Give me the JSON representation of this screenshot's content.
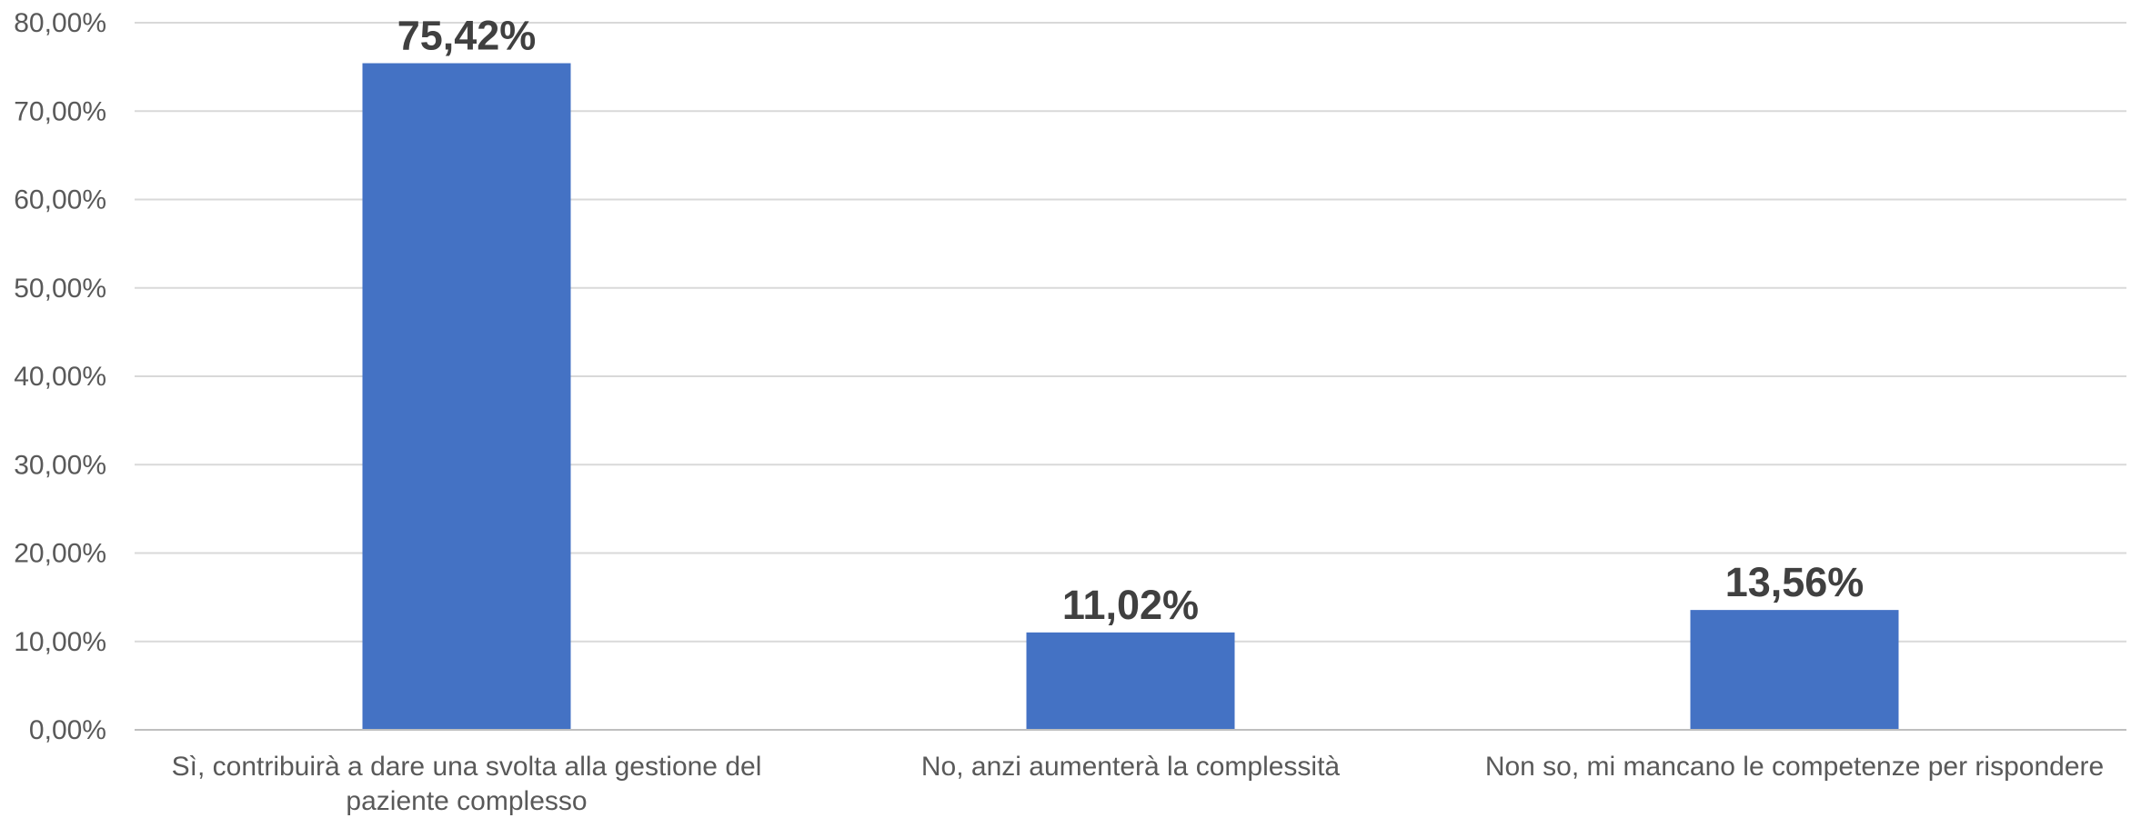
{
  "chart_data": {
    "type": "bar",
    "categories": [
      "Sì, contribuirà a dare una svolta alla gestione del paziente complesso",
      "No, anzi aumenterà la complessità",
      "Non so, mi mancano le competenze per rispondere"
    ],
    "category_lines": [
      [
        "Sì, contribuirà a dare una svolta alla gestione del",
        "paziente complesso"
      ],
      [
        "No, anzi aumenterà la complessità"
      ],
      [
        "Non so, mi mancano le competenze per rispondere"
      ]
    ],
    "values": [
      75.42,
      11.02,
      13.56
    ],
    "data_labels": [
      "75,42%",
      "11,02%",
      "13,56%"
    ],
    "title": "",
    "xlabel": "",
    "ylabel": "",
    "ylim": [
      0,
      80
    ],
    "yticks": [
      0,
      10,
      20,
      30,
      40,
      50,
      60,
      70,
      80
    ],
    "ytick_labels": [
      "0,00%",
      "10,00%",
      "20,00%",
      "30,00%",
      "40,00%",
      "50,00%",
      "60,00%",
      "70,00%",
      "80,00%"
    ],
    "grid": true,
    "legend": "none",
    "colors": {
      "bar": "#4472c4",
      "grid": "#d9d9d9",
      "axis": "#bfbfbf",
      "tick_text": "#595959",
      "label_text": "#404040"
    }
  }
}
